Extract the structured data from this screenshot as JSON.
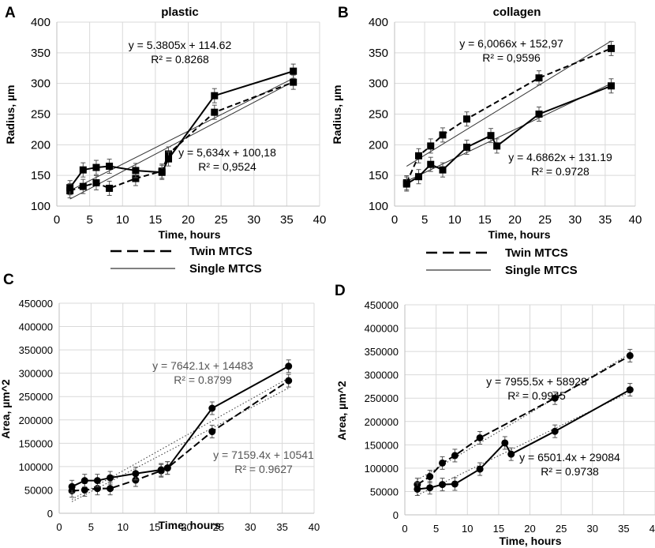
{
  "chart_data": [
    {
      "panel": "A",
      "type": "line",
      "title": "plastic",
      "xlabel": "Time, hours",
      "ylabel": "Radius, µm",
      "xlim": [
        0,
        40
      ],
      "ylim": [
        100,
        400
      ],
      "xticks": [
        "0",
        "5",
        "10",
        "15",
        "20",
        "25",
        "30",
        "35",
        "40"
      ],
      "yticks": [
        "100",
        "150",
        "200",
        "250",
        "300",
        "350",
        "400"
      ],
      "marker": "square",
      "series": [
        {
          "name": "Twin MTCS",
          "style": "dashed",
          "x": [
            2,
            4,
            6,
            8,
            12,
            16,
            17,
            24,
            36
          ],
          "y": [
            125,
            132,
            138,
            129,
            145,
            157,
            185,
            253,
            302
          ]
        },
        {
          "name": "Single MTCS",
          "style": "solid",
          "x": [
            2,
            4,
            6,
            8,
            12,
            16,
            17,
            24,
            36
          ],
          "y": [
            130,
            159,
            163,
            165,
            158,
            155,
            177,
            280,
            320
          ]
        }
      ],
      "trendlines": [
        {
          "series": "Twin MTCS",
          "slope": 5.634,
          "intercept": 100.18
        },
        {
          "series": "Single MTCS",
          "slope": 5.3805,
          "intercept": 114.62
        }
      ],
      "equations": [
        {
          "eq": "y = 5.3805x + 114.62",
          "r2": "R² = 0.8268"
        },
        {
          "eq": "y = 5,634x + 100,18",
          "r2": "R² = 0,9524"
        }
      ]
    },
    {
      "panel": "B",
      "type": "line",
      "title": "collagen",
      "xlabel": "Time, hours",
      "ylabel": "Radius, µm",
      "xlim": [
        0,
        40
      ],
      "ylim": [
        100,
        400
      ],
      "xticks": [
        "0",
        "5",
        "10",
        "15",
        "20",
        "25",
        "30",
        "35",
        "40"
      ],
      "yticks": [
        "100",
        "150",
        "200",
        "250",
        "300",
        "350",
        "400"
      ],
      "marker": "square",
      "series": [
        {
          "name": "Twin MTCS",
          "style": "dashed",
          "x": [
            2,
            4,
            6,
            8,
            12,
            24,
            36
          ],
          "y": [
            138,
            182,
            198,
            216,
            242,
            309,
            357
          ]
        },
        {
          "name": "Single MTCS",
          "style": "solid",
          "x": [
            2,
            4,
            6,
            8,
            12,
            16,
            17,
            24,
            36
          ],
          "y": [
            136,
            148,
            168,
            159,
            196,
            215,
            198,
            250,
            296
          ]
        }
      ],
      "trendlines": [
        {
          "series": "Twin MTCS",
          "slope": 6.0066,
          "intercept": 152.97
        },
        {
          "series": "Single MTCS",
          "slope": 4.6862,
          "intercept": 131.19
        }
      ],
      "equations": [
        {
          "eq": "y = 6,0066x + 152,97",
          "r2": "R² = 0,9596"
        },
        {
          "eq": "y = 4.6862x + 131.19",
          "r2": "R² = 0.9728"
        }
      ]
    },
    {
      "panel": "C",
      "type": "line",
      "title": "",
      "xlabel": "Time, hours",
      "ylabel": "Area, µm^2",
      "xlim": [
        0,
        40
      ],
      "ylim": [
        0,
        450000
      ],
      "xticks": [
        "0",
        "5",
        "10",
        "15",
        "20",
        "25",
        "30",
        "35",
        "40"
      ],
      "yticks": [
        "0",
        "50000",
        "100000",
        "150000",
        "200000",
        "250000",
        "300000",
        "350000",
        "400000",
        "450000"
      ],
      "marker": "circle",
      "series": [
        {
          "name": "Twin MTCS",
          "style": "dashed",
          "x": [
            2,
            4,
            6,
            8,
            12,
            16,
            17,
            24,
            36
          ],
          "y": [
            48000,
            50000,
            53000,
            53000,
            71000,
            91000,
            97000,
            175000,
            284000
          ]
        },
        {
          "name": "Single MTCS",
          "style": "solid",
          "x": [
            2,
            4,
            6,
            8,
            12,
            16,
            17,
            24,
            36
          ],
          "y": [
            57000,
            70000,
            70000,
            76000,
            85000,
            93000,
            97000,
            225000,
            315000
          ]
        }
      ],
      "trendlines": [
        {
          "series": "Twin MTCS",
          "slope": 7159.4,
          "intercept": 10541
        },
        {
          "series": "Single MTCS",
          "slope": 7642.1,
          "intercept": 14483
        }
      ],
      "equations": [
        {
          "eq": "y = 7642.1x + 14483",
          "r2": "R² = 0.8799"
        },
        {
          "eq": "y = 7159.4x + 10541",
          "r2": "R² = 0.9627"
        }
      ]
    },
    {
      "panel": "D",
      "type": "line",
      "title": "",
      "xlabel": "Time, hours",
      "ylabel": "Area, µm^2",
      "xlim": [
        0,
        40
      ],
      "ylim": [
        0,
        450000
      ],
      "xticks": [
        "0",
        "5",
        "10",
        "15",
        "20",
        "25",
        "30",
        "35",
        "40"
      ],
      "yticks": [
        "0",
        "50000",
        "100000",
        "150000",
        "200000",
        "250000",
        "300000",
        "350000",
        "400000",
        "450000"
      ],
      "marker": "circle",
      "series": [
        {
          "name": "Twin MTCS",
          "style": "dashed",
          "x": [
            2,
            4,
            6,
            8,
            12,
            24,
            36
          ],
          "y": [
            65000,
            82000,
            111000,
            127000,
            165000,
            250000,
            341000
          ]
        },
        {
          "name": "Single MTCS",
          "style": "solid",
          "x": [
            2,
            4,
            6,
            8,
            12,
            16,
            17,
            24,
            36
          ],
          "y": [
            55000,
            58000,
            65000,
            66000,
            98000,
            154000,
            130000,
            179000,
            268000
          ]
        }
      ],
      "trendlines": [
        {
          "series": "Twin MTCS",
          "slope": 7955.5,
          "intercept": 58928
        },
        {
          "series": "Single MTCS",
          "slope": 6501.4,
          "intercept": 29084
        }
      ],
      "equations": [
        {
          "eq": "y = 7955.5x + 58928",
          "r2": "R² = 0.9945"
        },
        {
          "eq": "y = 6501.4x + 29084",
          "r2": "R² = 0.9738"
        }
      ]
    }
  ],
  "legends": [
    {
      "twin": "Twin MTCS",
      "single": "Single MTCS"
    },
    {
      "twin": "Twin MTCS",
      "single": "Single MTCS"
    }
  ]
}
